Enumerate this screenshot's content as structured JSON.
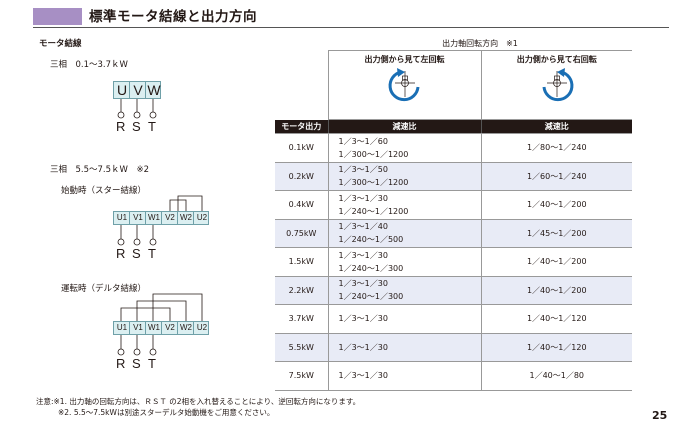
{
  "header": {
    "title": "標準モータ結線と出力方向"
  },
  "left": {
    "section_title": "モータ結線",
    "diagram1": {
      "label": "三相　0.1～3.7ｋW",
      "terminals": [
        "U",
        "V",
        "W"
      ],
      "supply": [
        "R",
        "S",
        "T"
      ]
    },
    "diagram2": {
      "label": "三相　5.5～7.5ｋW　※2",
      "start_label": "始動時（スター結線）",
      "run_label": "運転時（デルタ結線）",
      "terminals": [
        "U1",
        "V1",
        "W1",
        "V2",
        "W2",
        "U2"
      ],
      "supply": [
        "R",
        "S",
        "T"
      ]
    }
  },
  "table": {
    "rotation_header": "出力軸回転方向　※1",
    "left_rotation": "出力側から見て左回転",
    "right_rotation": "出力側から見て右回転",
    "col_motor": "モータ出力",
    "col_ratio": "減速比",
    "rows": [
      {
        "motor": "0.1kW",
        "left": [
          "1／3～1／60",
          "1／300～1／1200"
        ],
        "right": "1／80～1／240"
      },
      {
        "motor": "0.2kW",
        "left": [
          "1／3～1／50",
          "1／300～1／1200"
        ],
        "right": "1／60～1／240"
      },
      {
        "motor": "0.4kW",
        "left": [
          "1／3～1／30",
          "1／240～1／1200"
        ],
        "right": "1／40～1／200"
      },
      {
        "motor": "0.75kW",
        "left": [
          "1／3～1／40",
          "1／240～1／500"
        ],
        "right": "1／45～1／200"
      },
      {
        "motor": "1.5kW",
        "left": [
          "1／3～1／30",
          "1／240～1／300"
        ],
        "right": "1／40～1／200"
      },
      {
        "motor": "2.2kW",
        "left": [
          "1／3～1／30",
          "1／240～1／300"
        ],
        "right": "1／40～1／200"
      },
      {
        "motor": "3.7kW",
        "left": [
          "1／3～1／30"
        ],
        "right": "1／40～1／120"
      },
      {
        "motor": "5.5kW",
        "left": [
          "1／3～1／30"
        ],
        "right": "1／40～1／120"
      },
      {
        "motor": "7.5kW",
        "left": [
          "1／3～1／30"
        ],
        "right": "1／40～1／80"
      }
    ]
  },
  "notes": [
    "注意:※1. 出力軸の回転方向は、ＲＳＴ の2相を入れ替えることにより、逆回転方向になります。",
    "※2. 5.5～7.5kWは別途スターデルタ始動機をご用意ください。"
  ],
  "page_number": "25",
  "colors": {
    "header_bar": "#a78fc4",
    "terminal_box": "#dbeff1",
    "arrow_blue": "#1a6fb5",
    "alt_row": "#e8ebf6"
  }
}
